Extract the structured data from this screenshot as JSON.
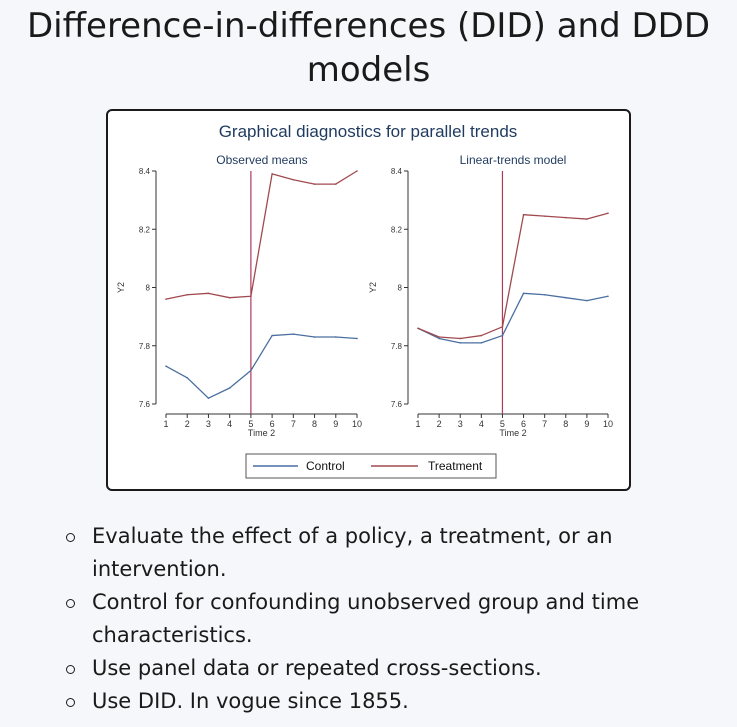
{
  "page": {
    "title": "Difference-in-differences (DID) and DDD models"
  },
  "chart_data": {
    "type": "line",
    "title": "Graphical diagnostics for parallel trends",
    "legend_position": "bottom",
    "legend": [
      "Control",
      "Treatment"
    ],
    "colors": {
      "control": "#4a6fa0",
      "treatment": "#a04a4f",
      "treatment_line": "#b03a5a"
    },
    "panels": [
      {
        "name": "observed",
        "subtitle": "Observed means",
        "xlabel": "Time 2",
        "ylabel": "Y2",
        "x": [
          1,
          2,
          3,
          4,
          5,
          6,
          7,
          8,
          9,
          10
        ],
        "xticks": [
          "1",
          "2",
          "3",
          "4",
          "5",
          "6",
          "7",
          "8",
          "9",
          "10"
        ],
        "yticks": [
          "7.6",
          "7.8",
          "8",
          "8.2",
          "8.4"
        ],
        "ylim": [
          7.6,
          8.4
        ],
        "treatment_time": 5,
        "series": [
          {
            "name": "Control",
            "values": [
              7.73,
              7.69,
              7.62,
              7.655,
              7.715,
              7.835,
              7.84,
              7.83,
              7.83,
              7.825
            ]
          },
          {
            "name": "Treatment",
            "values": [
              7.96,
              7.975,
              7.98,
              7.965,
              7.97,
              8.39,
              8.37,
              8.355,
              8.355,
              8.4
            ]
          }
        ]
      },
      {
        "name": "linear",
        "subtitle": "Linear-trends model",
        "xlabel": "Time 2",
        "ylabel": "Y2",
        "x": [
          1,
          2,
          3,
          4,
          5,
          6,
          7,
          8,
          9,
          10
        ],
        "xticks": [
          "1",
          "2",
          "3",
          "4",
          "5",
          "6",
          "7",
          "8",
          "9",
          "10"
        ],
        "yticks": [
          "7.6",
          "7.8",
          "8",
          "8.2",
          "8.4"
        ],
        "ylim": [
          7.6,
          8.4
        ],
        "treatment_time": 5,
        "series": [
          {
            "name": "Control",
            "values": [
              7.86,
              7.825,
              7.81,
              7.81,
              7.835,
              7.98,
              7.975,
              7.965,
              7.955,
              7.97
            ]
          },
          {
            "name": "Treatment",
            "values": [
              7.86,
              7.83,
              7.825,
              7.835,
              7.865,
              8.25,
              8.245,
              8.24,
              8.235,
              8.255
            ]
          }
        ]
      }
    ]
  },
  "bullets": [
    "Evaluate the effect of a policy, a treatment, or an intervention.",
    "Control for confounding unobserved group and time characteristics.",
    "Use panel data or repeated cross-sections.",
    "Use DID. In vogue since 1855."
  ]
}
